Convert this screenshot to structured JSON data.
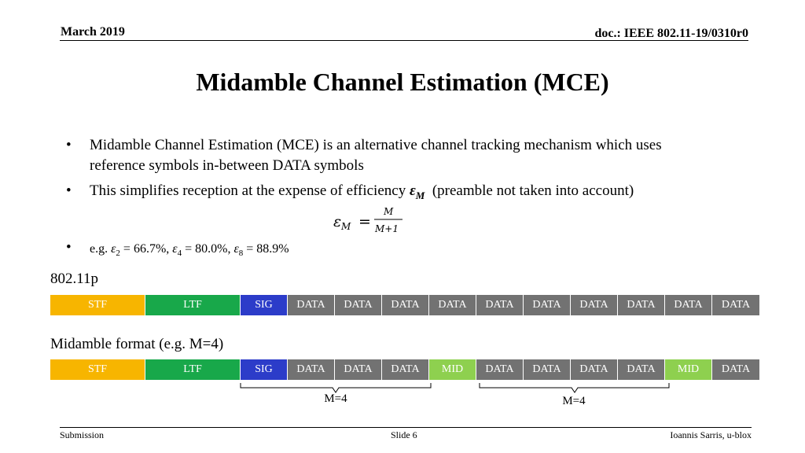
{
  "header": {
    "date": "March 2019",
    "doc": "doc.: IEEE 802.11-19/0310r0"
  },
  "title": "Midamble Channel Estimation (MCE)",
  "bullets": {
    "b1_line1": "Midamble Channel Estimation (MCE) is an alternative channel tracking mechanism which uses",
    "b1_line2": "reference symbols in-between DATA symbols",
    "b2_text": "This simplifies reception at the expense of efficiency",
    "b2_symbol": "ε",
    "b2_sub": "M",
    "b2_tail": "(preamble not taken into account)",
    "b3_prefix": "e.g.",
    "b3_items": [
      {
        "sym": "ε",
        "sub": "2",
        "val": "= 66.7%,"
      },
      {
        "sym": "ε",
        "sub": "4",
        "val": "= 80.0%,"
      },
      {
        "sym": "ε",
        "sub": "8",
        "val": "= 88.9%"
      }
    ]
  },
  "formula": {
    "lhs": "ε",
    "lhs_sub": "M",
    "eq": "=",
    "numerator": "M",
    "denominator": "M+1"
  },
  "frames": [
    {
      "label": "802.11p",
      "segments": [
        "STF",
        "LTF",
        "SIG",
        "DATA",
        "DATA",
        "DATA",
        "DATA",
        "DATA",
        "DATA",
        "DATA",
        "DATA",
        "DATA",
        "DATA"
      ]
    },
    {
      "label": "Midamble format (e.g. M=4)",
      "segments": [
        "STF",
        "LTF",
        "SIG",
        "DATA",
        "DATA",
        "DATA",
        "MID",
        "DATA",
        "DATA",
        "DATA",
        "DATA",
        "MID",
        "DATA"
      ]
    }
  ],
  "braces": [
    "M=4",
    "M=4"
  ],
  "footer": {
    "left": "Submission",
    "center": "Slide 6",
    "right": "Ioannis Sarris, u-blox"
  },
  "colors": {
    "STF": "#f7b500",
    "LTF": "#18a84a",
    "SIG": "#2c3cc9",
    "DATA": "#727272",
    "MID": "#8ed04f"
  }
}
